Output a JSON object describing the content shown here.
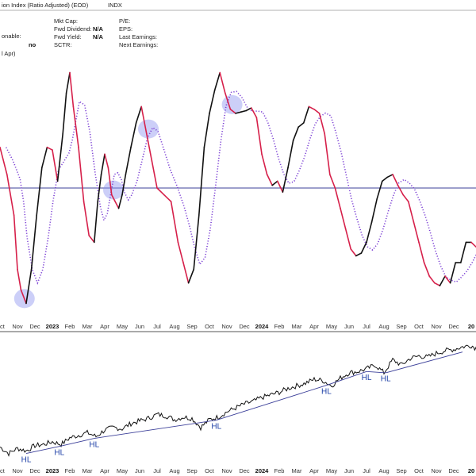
{
  "header": {
    "title_fragment": "ion Index (Ratio Adjusted) (EOD)",
    "exchange": "INDX",
    "col1": [
      {
        "label": "",
        "value": ""
      },
      {
        "label": "onable:",
        "value": "no"
      },
      {
        "label": "l Apr)",
        "value": ""
      }
    ],
    "col2": [
      {
        "label": "Mkt Cap:",
        "value": ""
      },
      {
        "label": "Fwd Dividend:",
        "value": "N/A"
      },
      {
        "label": "Fwd Yield:",
        "value": "N/A"
      },
      {
        "label": "SCTR:",
        "value": ""
      }
    ],
    "col3": [
      {
        "label": "P/E:",
        "value": ""
      },
      {
        "label": "EPS:",
        "value": ""
      },
      {
        "label": "Last Earnings:",
        "value": ""
      },
      {
        "label": "Next Earnings:",
        "value": ""
      }
    ]
  },
  "chart_data": [
    {
      "type": "line",
      "name": "oscillator",
      "months": [
        "Oct",
        "Nov",
        "Dec",
        "2023",
        "Feb",
        "Mar",
        "Apr",
        "May",
        "Jun",
        "Jul",
        "Aug",
        "Sep",
        "Oct",
        "Nov",
        "Dec",
        "2024",
        "Feb",
        "Mar",
        "Apr",
        "May",
        "Jun",
        "Jul",
        "Aug",
        "Sep",
        "Oct",
        "Nov",
        "Dec",
        "20"
      ],
      "bold_months": [
        "2023",
        "2024",
        "20"
      ],
      "zero_line": 0,
      "ylim": [
        -100,
        100
      ],
      "series": [
        {
          "color_up": "#111111",
          "color_down": "#d6204a",
          "x": [
            0,
            0.4,
            0.8,
            1.0,
            1.2,
            1.5,
            1.8,
            2.1,
            2.4,
            2.7,
            3.0,
            3.3,
            3.6,
            3.8,
            4.0,
            4.2,
            4.5,
            4.8,
            5.1,
            5.4,
            5.6,
            5.8,
            6.0,
            6.2,
            6.4,
            6.6,
            6.8,
            7.0,
            7.2,
            7.5,
            7.8,
            8.1,
            8.4,
            8.7,
            9.0,
            9.4,
            9.8,
            10.2,
            10.5,
            10.8,
            11.1,
            11.4,
            11.7,
            12.0,
            12.3,
            12.6,
            12.9,
            13.2,
            13.5,
            13.8,
            14.1,
            14.4,
            14.7,
            15.0,
            15.3,
            15.6,
            15.9,
            16.2,
            16.5,
            16.8,
            17.1,
            17.4,
            17.7,
            18.0,
            18.3,
            18.6,
            18.9,
            19.2,
            19.5,
            19.8,
            20.1,
            20.4,
            20.7,
            21.0,
            21.3,
            21.6,
            21.9,
            22.2,
            22.5,
            22.8,
            23.1,
            23.4,
            23.7,
            24.0,
            24.3,
            24.6,
            24.9,
            25.2,
            25.5,
            25.8,
            26.1,
            26.4,
            26.7,
            27.0,
            27.4
          ],
          "y": [
            30,
            10,
            -20,
            -60,
            -75,
            -85,
            -60,
            -20,
            15,
            30,
            28,
            5,
            40,
            70,
            85,
            60,
            30,
            -10,
            -35,
            -40,
            -10,
            10,
            25,
            15,
            -5,
            -10,
            -15,
            -5,
            10,
            30,
            48,
            60,
            40,
            20,
            0,
            -5,
            -10,
            -40,
            -55,
            -70,
            -60,
            -20,
            30,
            55,
            72,
            85,
            70,
            58,
            55,
            56,
            57,
            59,
            52,
            25,
            10,
            2,
            5,
            -3,
            15,
            35,
            45,
            48,
            60,
            58,
            55,
            40,
            10,
            0,
            -15,
            -30,
            -45,
            -50,
            -48,
            -40,
            -25,
            -8,
            5,
            8,
            10,
            2,
            -5,
            -10,
            -25,
            -40,
            -55,
            -65,
            -70,
            -72,
            -65,
            -70,
            -55,
            -55,
            -40,
            -40,
            -45
          ]
        },
        {
          "name": "signal",
          "color": "#7b3fd4",
          "style": "dotted"
        }
      ],
      "highlight_circles_x": [
        1.4,
        6.5,
        8.5,
        13.3
      ]
    },
    {
      "type": "line",
      "name": "price",
      "ylim": [
        0,
        100
      ],
      "x": [
        0,
        0.5,
        1.0,
        1.5,
        2.0,
        2.5,
        3.0,
        3.5,
        4.0,
        4.5,
        5.0,
        5.5,
        6.0,
        6.5,
        7.0,
        7.5,
        8.0,
        8.5,
        9.0,
        9.5,
        10.0,
        10.5,
        11.0,
        11.5,
        12.0,
        12.5,
        13.0,
        13.5,
        14.0,
        14.5,
        15.0,
        15.5,
        16.0,
        16.5,
        17.0,
        17.5,
        18.0,
        18.5,
        19.0,
        19.5,
        20.0,
        20.5,
        21.0,
        21.5,
        22.0,
        22.5,
        23.0,
        23.5,
        24.0,
        24.5,
        25.0,
        25.5,
        26.0,
        26.5,
        27.0,
        27.4
      ],
      "y": [
        15,
        10,
        14,
        12,
        16,
        17,
        19,
        17,
        22,
        24,
        26,
        23,
        28,
        30,
        29,
        33,
        35,
        37,
        40,
        39,
        36,
        38,
        37,
        30,
        36,
        38,
        42,
        45,
        48,
        50,
        53,
        55,
        57,
        60,
        62,
        64,
        67,
        66,
        62,
        68,
        72,
        73,
        75,
        78,
        72,
        82,
        78,
        83,
        85,
        84,
        87,
        89,
        90,
        92,
        93,
        90
      ],
      "annotations": [
        {
          "label": "HL",
          "x": 1.5
        },
        {
          "label": "HL",
          "x": 3.4
        },
        {
          "label": "HL",
          "x": 5.4
        },
        {
          "label": "HL",
          "x": 12.4
        },
        {
          "label": "HL",
          "x": 18.7
        },
        {
          "label": "HL",
          "x": 21.0
        },
        {
          "label": "HL",
          "x": 22.1
        }
      ]
    }
  ]
}
